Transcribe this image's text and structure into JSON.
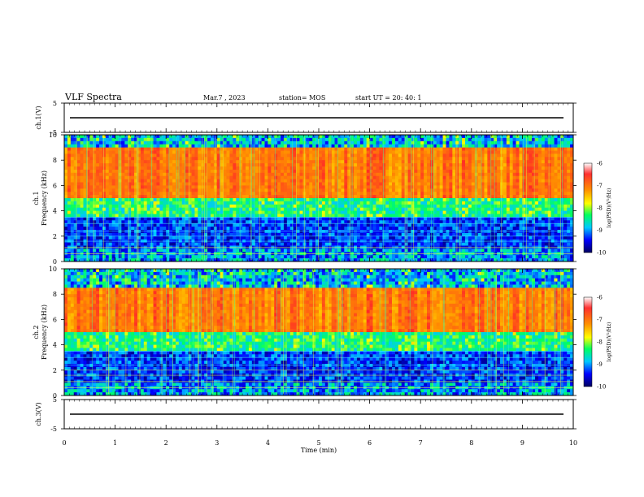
{
  "header": {
    "title": "VLF Spectra",
    "date": "Mar.7 , 2023",
    "station": "station= MOS",
    "start_ut": "start UT =  20: 40: 1"
  },
  "chart_data": [
    {
      "type": "line",
      "name": "ch.1 waveform",
      "ylabel": "ch.1(V)",
      "ylim": [
        -5,
        5
      ],
      "yticks": [
        "5",
        "-5"
      ],
      "x": [
        0,
        10
      ],
      "y": [
        0,
        0
      ]
    },
    {
      "type": "heatmap",
      "name": "ch.1 spectrogram",
      "ylabel": "ch.1\nFrequency (kHz)",
      "ylim": [
        0,
        10
      ],
      "yticks": [
        "0",
        "2",
        "4",
        "6",
        "8",
        "10"
      ],
      "intense_band_khz": [
        5,
        9
      ],
      "colorbar": {
        "label": "log(PSD)(V²/Hz)",
        "range": [
          -10,
          -6
        ],
        "ticks": [
          "-6",
          "-7",
          "-8",
          "-9",
          "-10"
        ]
      }
    },
    {
      "type": "heatmap",
      "name": "ch.2 spectrogram",
      "ylabel": "ch.2\nFrequency (kHz)",
      "ylim": [
        0,
        10
      ],
      "yticks": [
        "0",
        "2",
        "4",
        "6",
        "8",
        "10"
      ],
      "intense_band_khz": [
        5,
        8.5
      ],
      "colorbar": {
        "label": "log(PSD)(V²/Hz)",
        "range": [
          -10,
          -6
        ],
        "ticks": [
          "-6",
          "-7",
          "-8",
          "-9",
          "-10"
        ]
      }
    },
    {
      "type": "line",
      "name": "ch.3 waveform",
      "ylabel": "ch.3(V)",
      "ylim": [
        -5,
        5
      ],
      "yticks": [
        "5",
        "-5"
      ],
      "x": [
        0,
        10
      ],
      "y": [
        0,
        0
      ]
    }
  ],
  "xaxis": {
    "label": "Time  (min)",
    "ticks": [
      "0",
      "1",
      "2",
      "3",
      "4",
      "5",
      "6",
      "7",
      "8",
      "9",
      "10"
    ],
    "xlim": [
      0,
      10
    ]
  },
  "colors": {
    "colormap": [
      "#000080",
      "#0000ff",
      "#00c0ff",
      "#00ff80",
      "#ffff00",
      "#ff8000",
      "#ff0000"
    ]
  }
}
